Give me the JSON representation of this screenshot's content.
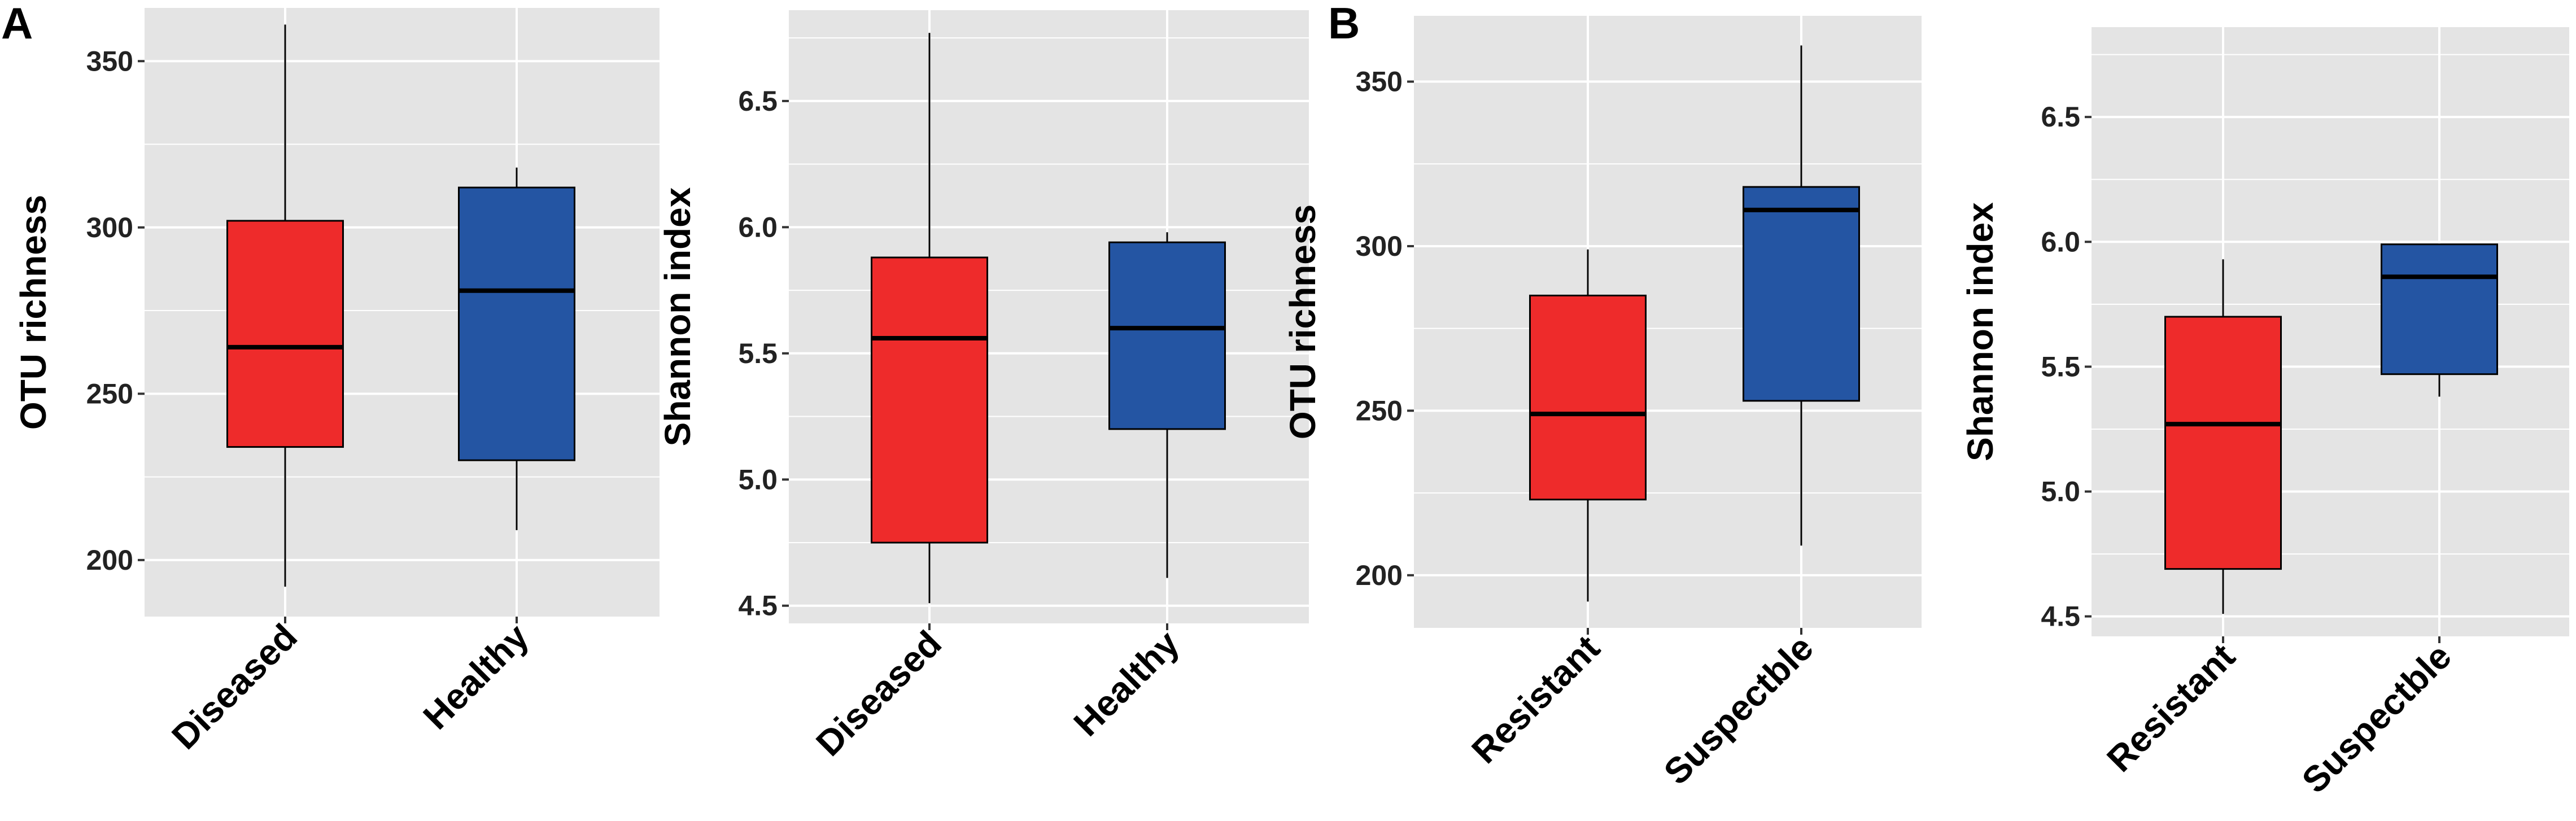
{
  "panel_labels": [
    "A",
    "B"
  ],
  "colors": {
    "red": "#EE2B2B",
    "blue": "#2455A3",
    "panel_bg": "#E4E4E4",
    "grid": "#FFFFFF"
  },
  "chart_data": [
    {
      "type": "boxplot",
      "panel": "A",
      "xlabel": "",
      "ylabel": "OTU richness",
      "ylim": [
        183,
        366
      ],
      "yticks": [
        200,
        250,
        300,
        350
      ],
      "grid": true,
      "categories": [
        "Diseased",
        "Healthy"
      ],
      "boxes": [
        {
          "category": "Diseased",
          "color": "#EE2B2B",
          "min": 192,
          "q1": 234,
          "median": 264,
          "q3": 302,
          "max": 361
        },
        {
          "category": "Healthy",
          "color": "#2455A3",
          "min": 209,
          "q1": 230,
          "median": 281,
          "q3": 312,
          "max": 318
        }
      ]
    },
    {
      "type": "boxplot",
      "panel": "A",
      "xlabel": "",
      "ylabel": "Shannon index",
      "ylim": [
        4.43,
        6.86
      ],
      "yticks": [
        4.5,
        5.0,
        5.5,
        6.0,
        6.5
      ],
      "ytick_labels": [
        "4.5",
        "5.0",
        "5.5",
        "6.0",
        "6.5"
      ],
      "grid": true,
      "categories": [
        "Diseased",
        "Healthy"
      ],
      "boxes": [
        {
          "category": "Diseased",
          "color": "#EE2B2B",
          "min": 4.51,
          "q1": 4.75,
          "median": 5.56,
          "q3": 5.88,
          "max": 6.77
        },
        {
          "category": "Healthy",
          "color": "#2455A3",
          "min": 4.61,
          "q1": 5.2,
          "median": 5.6,
          "q3": 5.94,
          "max": 5.98
        }
      ]
    },
    {
      "type": "boxplot",
      "panel": "B",
      "xlabel": "",
      "ylabel": "OTU richness",
      "ylim": [
        184,
        370
      ],
      "yticks": [
        200,
        250,
        300,
        350
      ],
      "grid": true,
      "categories": [
        "Resistant",
        "Suspectble"
      ],
      "boxes": [
        {
          "category": "Resistant",
          "color": "#EE2B2B",
          "min": 192,
          "q1": 223,
          "median": 249,
          "q3": 285,
          "max": 299
        },
        {
          "category": "Suspectble",
          "color": "#2455A3",
          "min": 209,
          "q1": 253,
          "median": 311,
          "q3": 318,
          "max": 361
        }
      ]
    },
    {
      "type": "boxplot",
      "panel": "B",
      "xlabel": "",
      "ylabel": "Shannon index",
      "ylim": [
        4.42,
        6.86
      ],
      "yticks": [
        4.5,
        5.0,
        5.5,
        6.0,
        6.5
      ],
      "ytick_labels": [
        "4.5",
        "5.0",
        "5.5",
        "6.0",
        "6.5"
      ],
      "grid": true,
      "categories": [
        "Resistant",
        "Suspectble"
      ],
      "boxes": [
        {
          "category": "Resistant",
          "color": "#EE2B2B",
          "min": 4.51,
          "q1": 4.69,
          "median": 5.27,
          "q3": 5.7,
          "max": 5.93
        },
        {
          "category": "Suspectble",
          "color": "#2455A3",
          "min": 5.38,
          "q1": 5.47,
          "median": 5.86,
          "q3": 5.99,
          "max": 5.99
        }
      ]
    }
  ]
}
